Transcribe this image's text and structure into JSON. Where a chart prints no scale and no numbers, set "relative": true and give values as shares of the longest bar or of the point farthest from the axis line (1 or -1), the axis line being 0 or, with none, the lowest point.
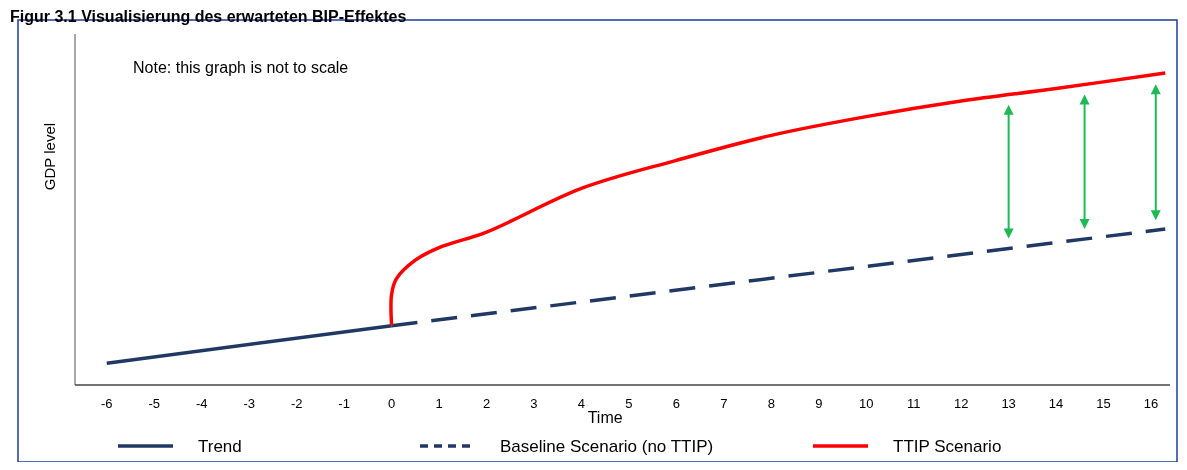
{
  "chart_data": {
    "type": "line",
    "title": "Figur 3.1 Visualisierung des erwarteten BIP-Effektes",
    "xlabel": "Time",
    "ylabel": "GDP level",
    "annotations": [
      "Note: this graph is not to scale"
    ],
    "relative": true,
    "xlim": [
      -6.67,
      16.4
    ],
    "xticks": [
      -6,
      -5,
      -4,
      -3,
      -2,
      -1,
      0,
      1,
      2,
      3,
      4,
      5,
      6,
      7,
      8,
      9,
      10,
      11,
      12,
      13,
      14,
      15,
      16
    ],
    "legend": "bottom",
    "series": [
      {
        "name": "Trend",
        "color": "#1f3864",
        "line_style": "solid",
        "x": [
          -6,
          0
        ],
        "values": [
          0.07,
          0.19
        ]
      },
      {
        "name": "Baseline Scenario (no TTIP)",
        "color": "#1f3864",
        "line_style": "dashed",
        "x": [
          0,
          16.3
        ],
        "values": [
          0.19,
          0.5
        ]
      },
      {
        "name": "TTIP Scenario",
        "color": "#ff0000",
        "line_style": "solid",
        "x": [
          0,
          0,
          0.1,
          0.5,
          1,
          2,
          4,
          6,
          8,
          10,
          12,
          14,
          16.3
        ],
        "values": [
          0.19,
          0.29,
          0.34,
          0.4,
          0.44,
          0.49,
          0.63,
          0.72,
          0.8,
          0.86,
          0.91,
          0.95,
          1
        ]
      }
    ]
  }
}
